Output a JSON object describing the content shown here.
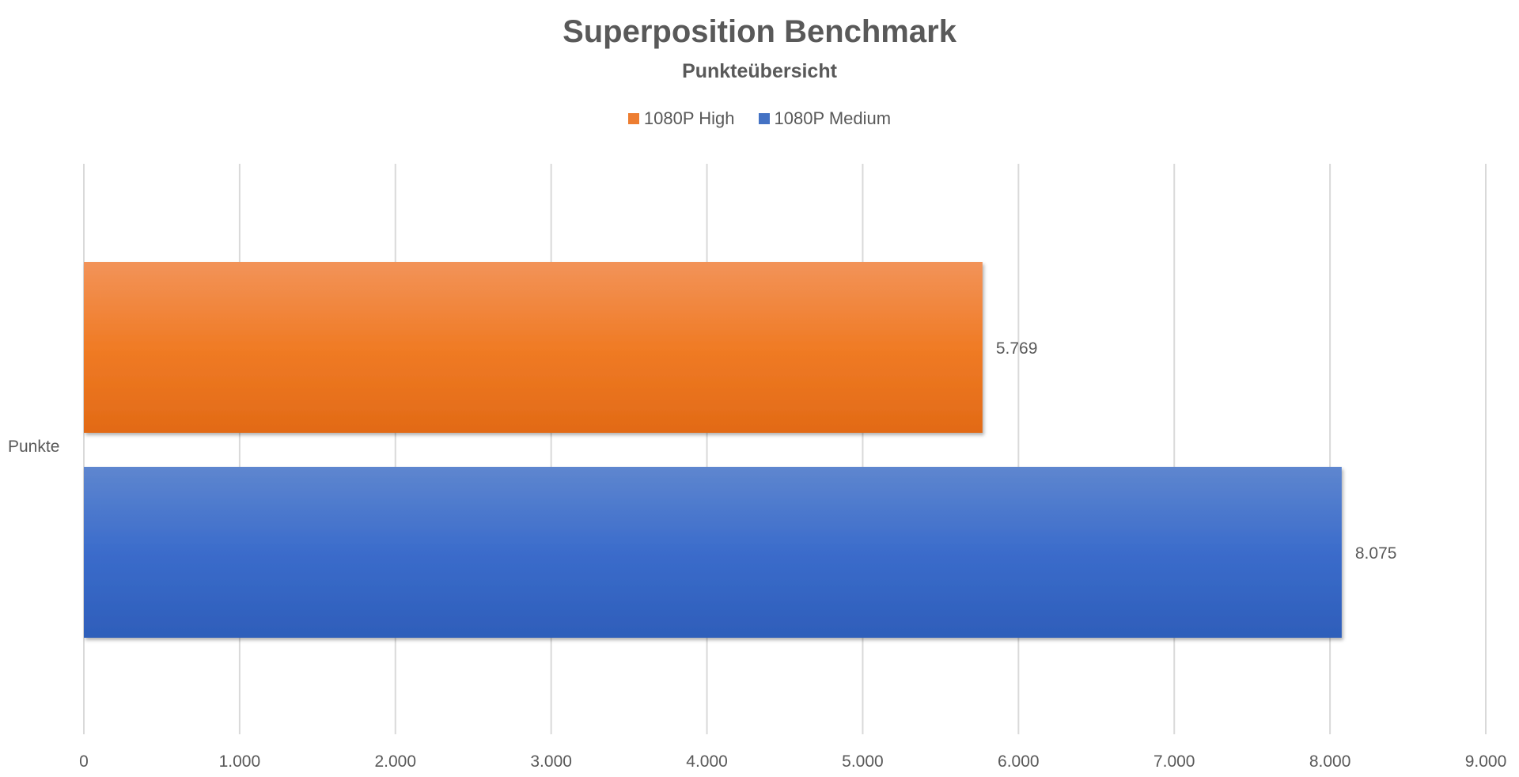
{
  "chart_data": {
    "type": "bar",
    "orientation": "horizontal",
    "title": "Superposition Benchmark",
    "subtitle": "Punkteübersicht",
    "categories": [
      "Punkte"
    ],
    "series": [
      {
        "name": "1080P High",
        "values": [
          5769
        ],
        "label": "5.769",
        "color": "#ED7D31"
      },
      {
        "name": "1080P Medium",
        "values": [
          8075
        ],
        "label": "8.075",
        "color": "#4472C4"
      }
    ],
    "xlim": [
      0,
      9000
    ],
    "xticks": [
      0,
      1000,
      2000,
      3000,
      4000,
      5000,
      6000,
      7000,
      8000,
      9000
    ],
    "xtick_labels": [
      "0",
      "1.000",
      "2.000",
      "3.000",
      "4.000",
      "5.000",
      "6.000",
      "7.000",
      "8.000",
      "9.000"
    ],
    "grid": true,
    "legend_position": "top"
  }
}
